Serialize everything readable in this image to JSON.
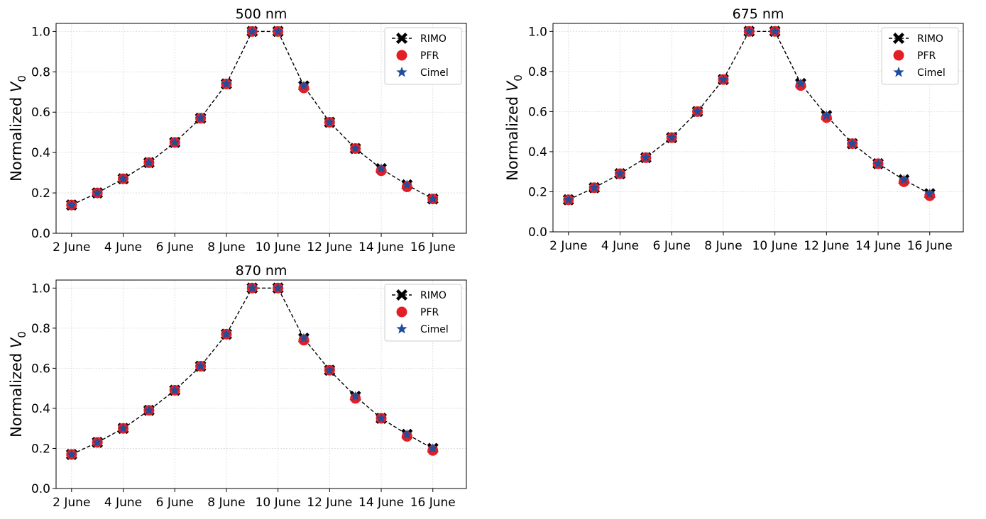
{
  "colors": {
    "rimo": "#000000",
    "pfr": "#e31e24",
    "cimel": "#1f4e9c",
    "grid": "#d9d9d9",
    "axis": "#000000"
  },
  "icons": {
    "rimo": "x-marker-icon",
    "pfr": "circle-marker-icon",
    "cimel": "star-marker-icon"
  },
  "chart_data": [
    {
      "type": "line",
      "title": "500 nm",
      "ylabel": "Normalized V",
      "ylabel_subscript": "0",
      "ylim": [
        0,
        1.04
      ],
      "yticks": [
        "0.0",
        "0.2",
        "0.4",
        "0.6",
        "0.8",
        "1.0"
      ],
      "xtick_labels": [
        "2 June",
        "4 June",
        "6 June",
        "8 June",
        "10 June",
        "12 June",
        "14 June",
        "16 June"
      ],
      "xlim": [
        1.6,
        17.5
      ],
      "grid": true,
      "legend": {
        "position": "top-right",
        "labels": [
          "RIMO",
          "PFR",
          "Cimel"
        ]
      },
      "x": [
        2.2,
        3.2,
        4.2,
        5.2,
        6.2,
        7.2,
        8.2,
        9.2,
        10.2,
        11.2,
        12.2,
        13.2,
        14.2,
        15.2,
        16.2
      ],
      "series": [
        {
          "name": "RIMO",
          "values": [
            0.14,
            0.2,
            0.27,
            0.35,
            0.45,
            0.57,
            0.74,
            1.0,
            1.0,
            0.73,
            0.55,
            0.42,
            0.32,
            0.24,
            0.17
          ]
        },
        {
          "name": "PFR",
          "values": [
            0.14,
            0.2,
            0.27,
            0.35,
            0.45,
            0.57,
            0.74,
            1.0,
            1.0,
            0.72,
            0.55,
            0.42,
            0.31,
            0.23,
            0.17
          ]
        },
        {
          "name": "Cimel",
          "values": [
            0.14,
            0.2,
            0.27,
            0.35,
            0.45,
            0.57,
            0.74,
            1.0,
            1.0,
            0.73,
            0.55,
            0.42,
            0.32,
            0.24,
            0.17
          ]
        }
      ]
    },
    {
      "type": "line",
      "title": "675 nm",
      "ylabel": "Normalized V",
      "ylabel_subscript": "0",
      "ylim": [
        0,
        1.04
      ],
      "yticks": [
        "0.0",
        "0.2",
        "0.4",
        "0.6",
        "0.8",
        "1.0"
      ],
      "xtick_labels": [
        "2 June",
        "4 June",
        "6 June",
        "8 June",
        "10 June",
        "12 June",
        "14 June",
        "16 June"
      ],
      "xlim": [
        1.6,
        17.5
      ],
      "grid": true,
      "legend": {
        "position": "top-right",
        "labels": [
          "RIMO",
          "PFR",
          "Cimel"
        ]
      },
      "x": [
        2.2,
        3.2,
        4.2,
        5.2,
        6.2,
        7.2,
        8.2,
        9.2,
        10.2,
        11.2,
        12.2,
        13.2,
        14.2,
        15.2,
        16.2
      ],
      "series": [
        {
          "name": "RIMO",
          "values": [
            0.16,
            0.22,
            0.29,
            0.37,
            0.47,
            0.6,
            0.76,
            1.0,
            1.0,
            0.74,
            0.58,
            0.44,
            0.34,
            0.26,
            0.19
          ]
        },
        {
          "name": "PFR",
          "values": [
            0.16,
            0.22,
            0.29,
            0.37,
            0.47,
            0.6,
            0.76,
            1.0,
            1.0,
            0.73,
            0.57,
            0.44,
            0.34,
            0.25,
            0.18
          ]
        },
        {
          "name": "Cimel",
          "values": [
            0.16,
            0.22,
            0.29,
            0.37,
            0.47,
            0.6,
            0.76,
            1.0,
            1.0,
            0.74,
            0.58,
            0.44,
            0.34,
            0.26,
            0.19
          ]
        }
      ]
    },
    {
      "type": "line",
      "title": "870 nm",
      "ylabel": "Normalized V",
      "ylabel_subscript": "0",
      "ylim": [
        0,
        1.04
      ],
      "yticks": [
        "0.0",
        "0.2",
        "0.4",
        "0.6",
        "0.8",
        "1.0"
      ],
      "xtick_labels": [
        "2 June",
        "4 June",
        "6 June",
        "8 June",
        "10 June",
        "12 June",
        "14 June",
        "16 June"
      ],
      "xlim": [
        1.6,
        17.5
      ],
      "grid": true,
      "legend": {
        "position": "top-right",
        "labels": [
          "RIMO",
          "PFR",
          "Cimel"
        ]
      },
      "x": [
        2.2,
        3.2,
        4.2,
        5.2,
        6.2,
        7.2,
        8.2,
        9.2,
        10.2,
        11.2,
        12.2,
        13.2,
        14.2,
        15.2,
        16.2
      ],
      "series": [
        {
          "name": "RIMO",
          "values": [
            0.17,
            0.23,
            0.3,
            0.39,
            0.49,
            0.61,
            0.77,
            1.0,
            1.0,
            0.75,
            0.59,
            0.46,
            0.35,
            0.27,
            0.2
          ]
        },
        {
          "name": "PFR",
          "values": [
            0.17,
            0.23,
            0.3,
            0.39,
            0.49,
            0.61,
            0.77,
            1.0,
            1.0,
            0.74,
            0.59,
            0.45,
            0.35,
            0.26,
            0.19
          ]
        },
        {
          "name": "Cimel",
          "values": [
            0.17,
            0.23,
            0.3,
            0.39,
            0.49,
            0.61,
            0.77,
            1.0,
            1.0,
            0.75,
            0.59,
            0.46,
            0.35,
            0.27,
            0.2
          ]
        }
      ]
    }
  ]
}
